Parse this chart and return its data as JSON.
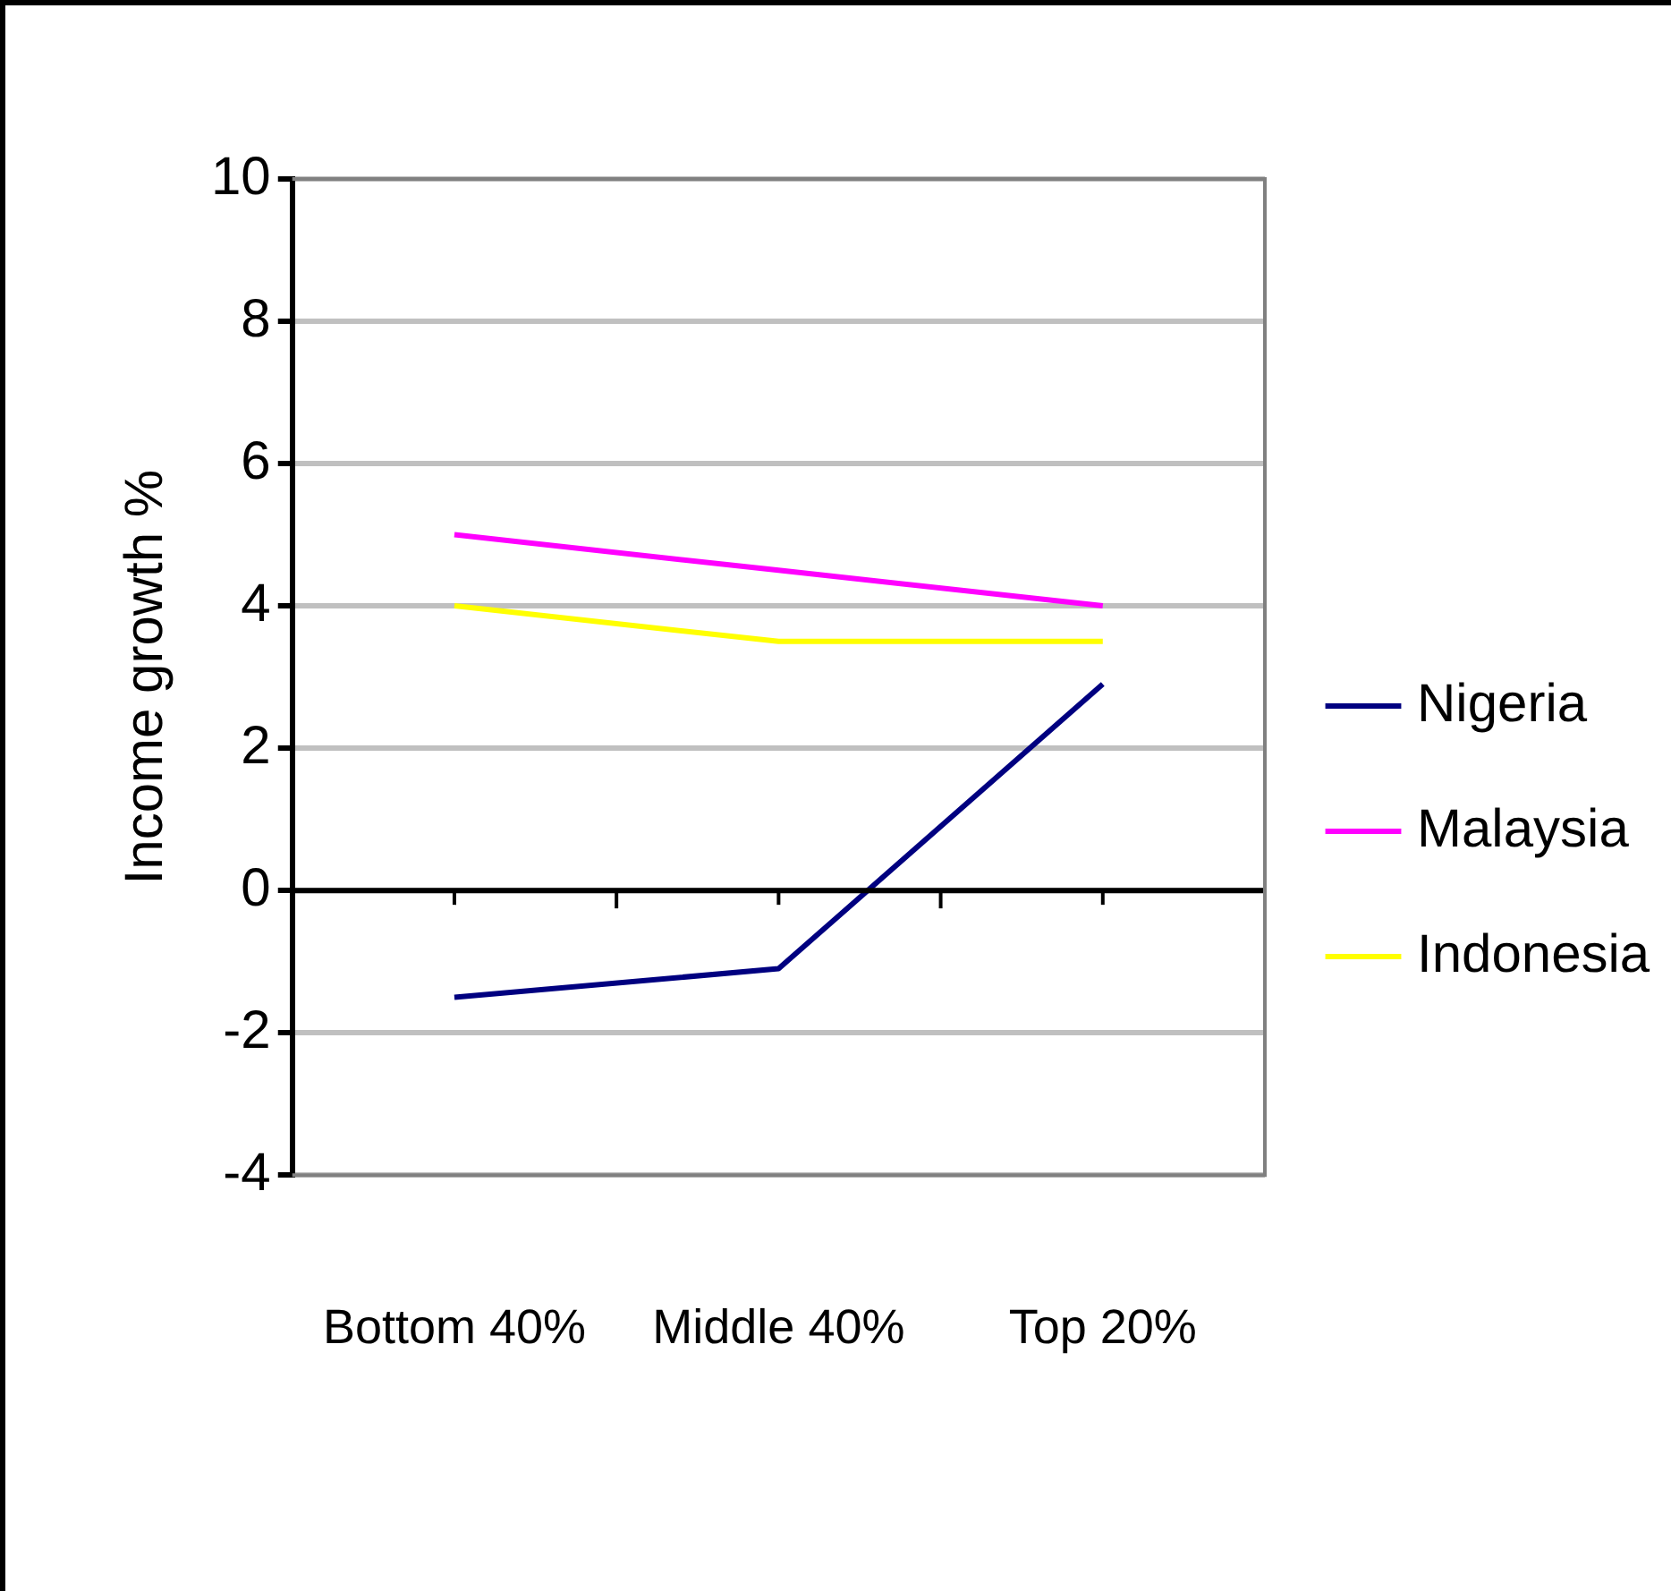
{
  "chart_data": {
    "type": "line",
    "ylabel": "Income growth %",
    "categories": [
      "Bottom 40%",
      "Middle 40%",
      "Top 20%"
    ],
    "series": [
      {
        "name": "Nigeria",
        "color": "#000080",
        "values": [
          -1.5,
          -1.1,
          2.9
        ]
      },
      {
        "name": "Malaysia",
        "color": "#ff00ff",
        "values": [
          5,
          4.5,
          4
        ]
      },
      {
        "name": "Indonesia",
        "color": "#ffff00",
        "values": [
          4,
          3.5,
          3.5
        ]
      }
    ],
    "ylim": [
      -4,
      10
    ],
    "yticks": [
      -4,
      -2,
      0,
      2,
      4,
      6,
      8,
      10
    ],
    "grid": "y",
    "legend": "right",
    "marker": "none",
    "line_style": "solid"
  }
}
